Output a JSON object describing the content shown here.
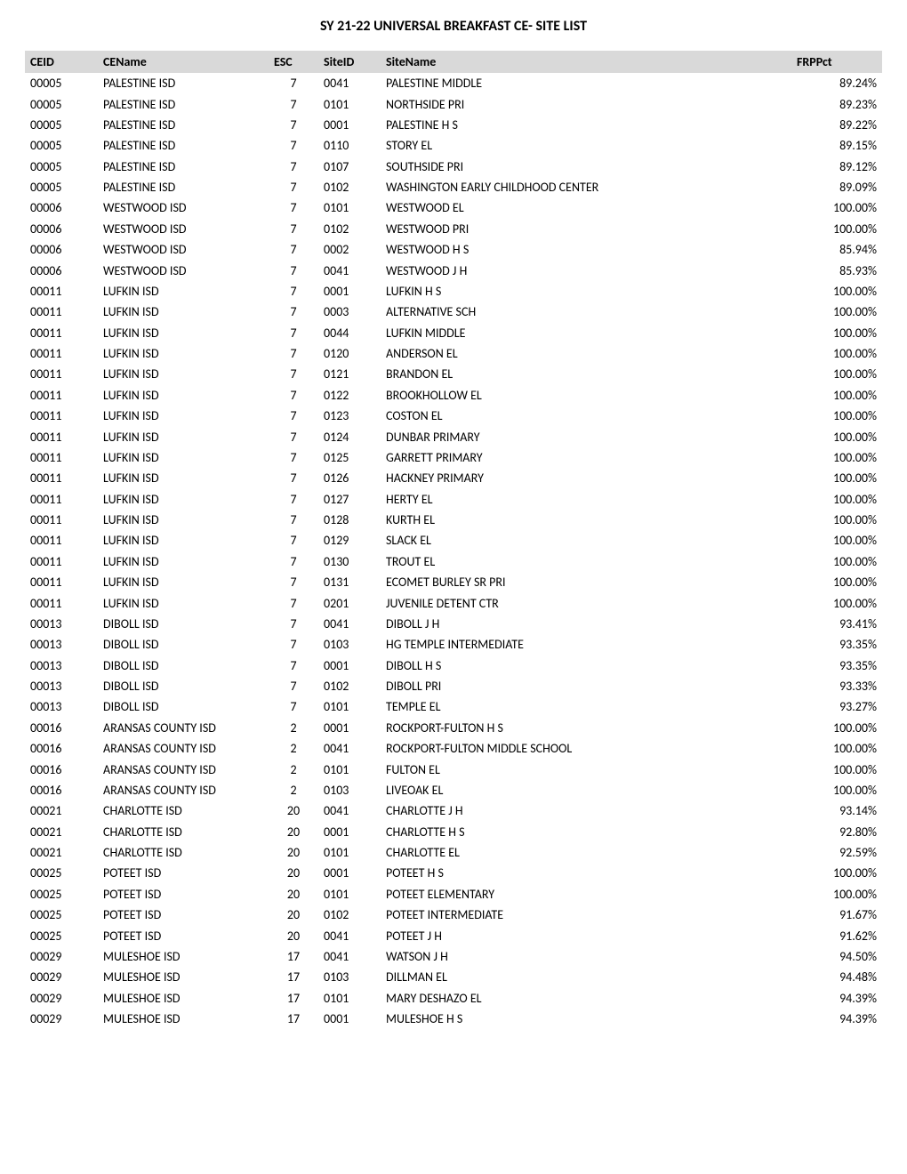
{
  "title": "SY 21-22 UNIVERSAL BREAKFAST CE- SITE LIST",
  "columns": [
    "CEID",
    "CEName",
    "ESC",
    "SiteID",
    "SiteName",
    "FRPPct"
  ],
  "rows": [
    [
      "00005",
      "PALESTINE ISD",
      "7",
      "0041",
      "PALESTINE MIDDLE",
      "89.24%"
    ],
    [
      "00005",
      "PALESTINE ISD",
      "7",
      "0101",
      "NORTHSIDE PRI",
      "89.23%"
    ],
    [
      "00005",
      "PALESTINE ISD",
      "7",
      "0001",
      "PALESTINE H S",
      "89.22%"
    ],
    [
      "00005",
      "PALESTINE ISD",
      "7",
      "0110",
      "STORY EL",
      "89.15%"
    ],
    [
      "00005",
      "PALESTINE ISD",
      "7",
      "0107",
      "SOUTHSIDE PRI",
      "89.12%"
    ],
    [
      "00005",
      "PALESTINE ISD",
      "7",
      "0102",
      "WASHINGTON EARLY CHILDHOOD CENTER",
      "89.09%"
    ],
    [
      "00006",
      "WESTWOOD ISD",
      "7",
      "0101",
      "WESTWOOD EL",
      "100.00%"
    ],
    [
      "00006",
      "WESTWOOD ISD",
      "7",
      "0102",
      "WESTWOOD PRI",
      "100.00%"
    ],
    [
      "00006",
      "WESTWOOD ISD",
      "7",
      "0002",
      "WESTWOOD H S",
      "85.94%"
    ],
    [
      "00006",
      "WESTWOOD ISD",
      "7",
      "0041",
      "WESTWOOD J H",
      "85.93%"
    ],
    [
      "00011",
      "LUFKIN ISD",
      "7",
      "0001",
      "LUFKIN H S",
      "100.00%"
    ],
    [
      "00011",
      "LUFKIN ISD",
      "7",
      "0003",
      "ALTERNATIVE SCH",
      "100.00%"
    ],
    [
      "00011",
      "LUFKIN ISD",
      "7",
      "0044",
      "LUFKIN MIDDLE",
      "100.00%"
    ],
    [
      "00011",
      "LUFKIN ISD",
      "7",
      "0120",
      "ANDERSON EL",
      "100.00%"
    ],
    [
      "00011",
      "LUFKIN ISD",
      "7",
      "0121",
      "BRANDON EL",
      "100.00%"
    ],
    [
      "00011",
      "LUFKIN ISD",
      "7",
      "0122",
      "BROOKHOLLOW EL",
      "100.00%"
    ],
    [
      "00011",
      "LUFKIN ISD",
      "7",
      "0123",
      "COSTON EL",
      "100.00%"
    ],
    [
      "00011",
      "LUFKIN ISD",
      "7",
      "0124",
      "DUNBAR PRIMARY",
      "100.00%"
    ],
    [
      "00011",
      "LUFKIN ISD",
      "7",
      "0125",
      "GARRETT PRIMARY",
      "100.00%"
    ],
    [
      "00011",
      "LUFKIN ISD",
      "7",
      "0126",
      "HACKNEY PRIMARY",
      "100.00%"
    ],
    [
      "00011",
      "LUFKIN ISD",
      "7",
      "0127",
      "HERTY EL",
      "100.00%"
    ],
    [
      "00011",
      "LUFKIN ISD",
      "7",
      "0128",
      "KURTH EL",
      "100.00%"
    ],
    [
      "00011",
      "LUFKIN ISD",
      "7",
      "0129",
      "SLACK EL",
      "100.00%"
    ],
    [
      "00011",
      "LUFKIN ISD",
      "7",
      "0130",
      "TROUT EL",
      "100.00%"
    ],
    [
      "00011",
      "LUFKIN ISD",
      "7",
      "0131",
      "ECOMET BURLEY SR PRI",
      "100.00%"
    ],
    [
      "00011",
      "LUFKIN ISD",
      "7",
      "0201",
      "JUVENILE DETENT CTR",
      "100.00%"
    ],
    [
      "00013",
      "DIBOLL ISD",
      "7",
      "0041",
      "DIBOLL J H",
      "93.41%"
    ],
    [
      "00013",
      "DIBOLL ISD",
      "7",
      "0103",
      "HG TEMPLE INTERMEDIATE",
      "93.35%"
    ],
    [
      "00013",
      "DIBOLL ISD",
      "7",
      "0001",
      "DIBOLL H S",
      "93.35%"
    ],
    [
      "00013",
      "DIBOLL ISD",
      "7",
      "0102",
      "DIBOLL PRI",
      "93.33%"
    ],
    [
      "00013",
      "DIBOLL ISD",
      "7",
      "0101",
      "TEMPLE EL",
      "93.27%"
    ],
    [
      "00016",
      "ARANSAS COUNTY ISD",
      "2",
      "0001",
      "ROCKPORT-FULTON H S",
      "100.00%"
    ],
    [
      "00016",
      "ARANSAS COUNTY ISD",
      "2",
      "0041",
      "ROCKPORT-FULTON MIDDLE SCHOOL",
      "100.00%"
    ],
    [
      "00016",
      "ARANSAS COUNTY ISD",
      "2",
      "0101",
      "FULTON EL",
      "100.00%"
    ],
    [
      "00016",
      "ARANSAS COUNTY ISD",
      "2",
      "0103",
      "LIVEOAK EL",
      "100.00%"
    ],
    [
      "00021",
      "CHARLOTTE ISD",
      "20",
      "0041",
      "CHARLOTTE J H",
      "93.14%"
    ],
    [
      "00021",
      "CHARLOTTE ISD",
      "20",
      "0001",
      "CHARLOTTE H S",
      "92.80%"
    ],
    [
      "00021",
      "CHARLOTTE ISD",
      "20",
      "0101",
      "CHARLOTTE EL",
      "92.59%"
    ],
    [
      "00025",
      "POTEET ISD",
      "20",
      "0001",
      "POTEET H S",
      "100.00%"
    ],
    [
      "00025",
      "POTEET ISD",
      "20",
      "0101",
      "POTEET ELEMENTARY",
      "100.00%"
    ],
    [
      "00025",
      "POTEET ISD",
      "20",
      "0102",
      "POTEET INTERMEDIATE",
      "91.67%"
    ],
    [
      "00025",
      "POTEET ISD",
      "20",
      "0041",
      "POTEET J H",
      "91.62%"
    ],
    [
      "00029",
      "MULESHOE ISD",
      "17",
      "0041",
      "WATSON J H",
      "94.50%"
    ],
    [
      "00029",
      "MULESHOE ISD",
      "17",
      "0103",
      "DILLMAN EL",
      "94.48%"
    ],
    [
      "00029",
      "MULESHOE ISD",
      "17",
      "0101",
      "MARY DESHAZO EL",
      "94.39%"
    ],
    [
      "00029",
      "MULESHOE ISD",
      "17",
      "0001",
      "MULESHOE H S",
      "94.39%"
    ]
  ]
}
